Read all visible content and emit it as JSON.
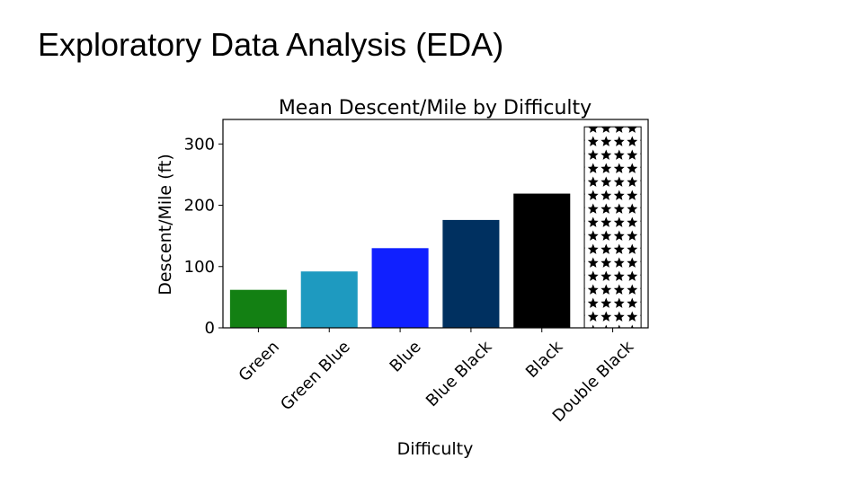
{
  "slide": {
    "title": "Exploratory Data Analysis (EDA)"
  },
  "chart_data": {
    "type": "bar",
    "title": "Mean Descent/Mile by Difficulty",
    "xlabel": "Difficulty",
    "ylabel": "Descent/Mile (ft)",
    "categories": [
      "Green",
      "Green Blue",
      "Blue",
      "Blue Black",
      "Black",
      "Double Black"
    ],
    "values": [
      62,
      92,
      130,
      176,
      219,
      328
    ],
    "colors": [
      "#138013",
      "#1e9ac0",
      "#1020ff",
      "#003060",
      "#000000",
      "#ffffff"
    ],
    "patterns": [
      "",
      "",
      "",
      "",
      "",
      "stars"
    ],
    "ylim": [
      0,
      340
    ],
    "yticks": [
      0,
      100,
      200,
      300
    ],
    "grid": false,
    "legend": false
  }
}
